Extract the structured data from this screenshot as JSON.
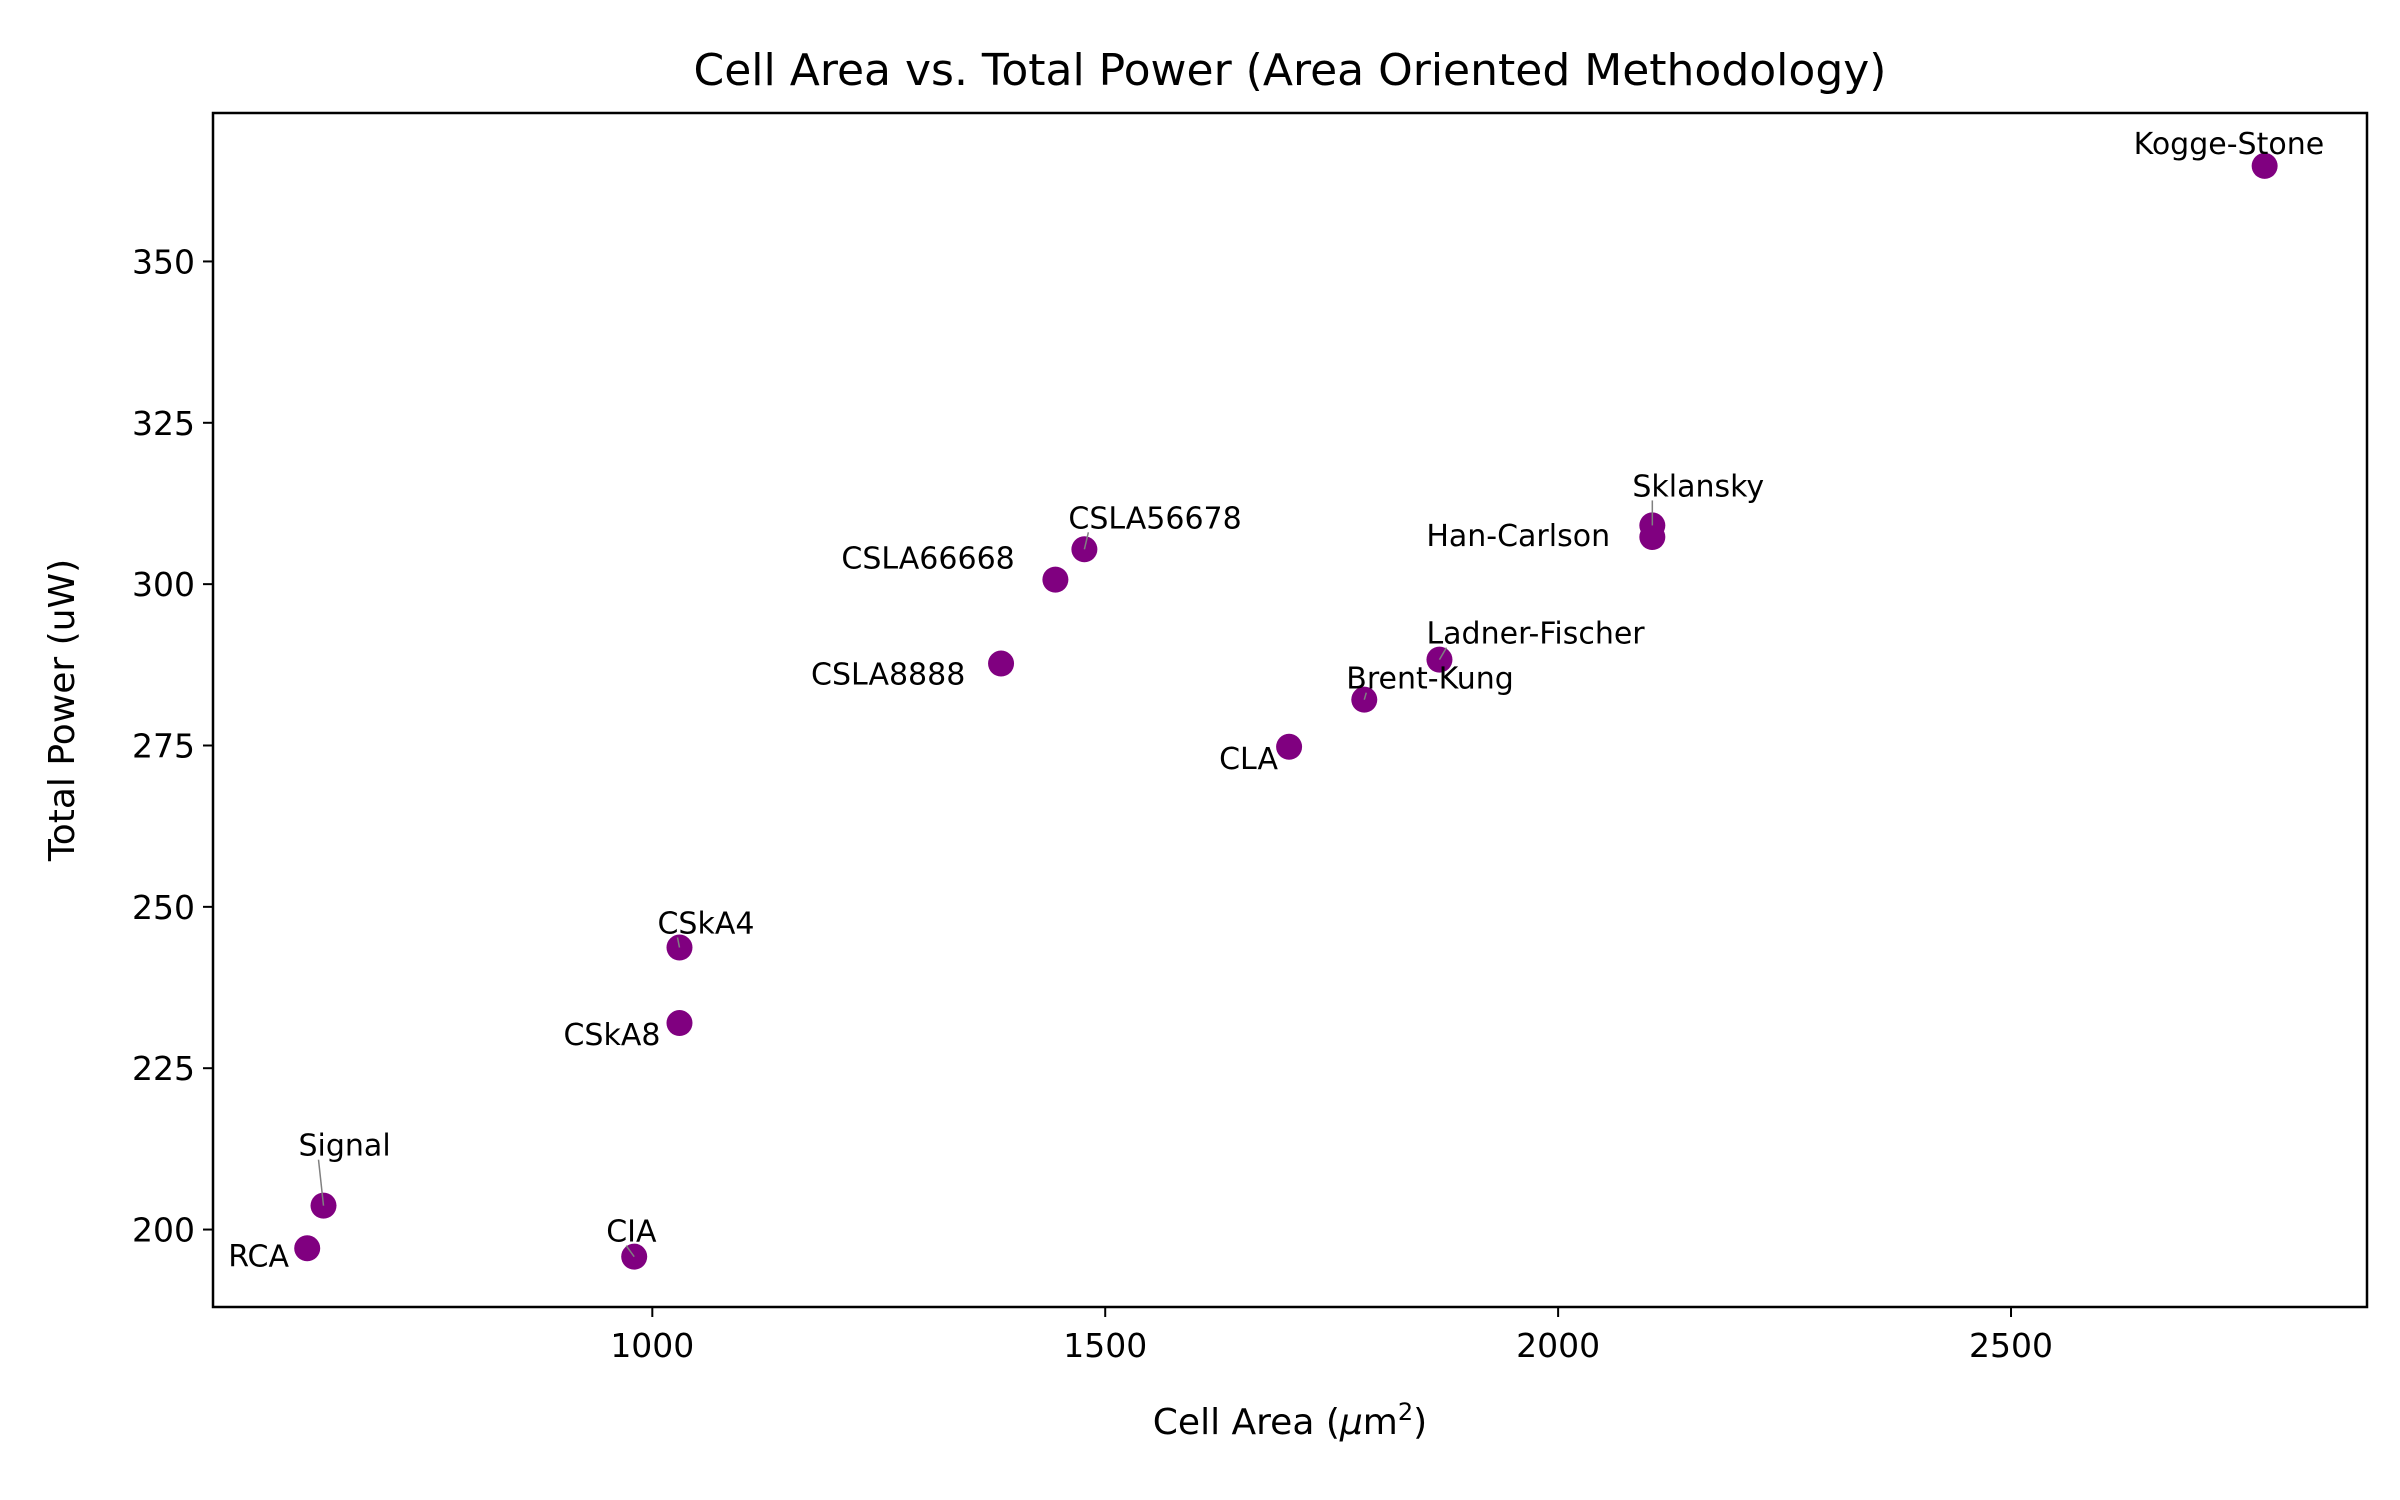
{
  "chart_data": {
    "type": "scatter",
    "title": "Cell Area vs. Total Power (Area Oriented Methodology)",
    "xlabel_main": "Cell Area (",
    "xlabel_mu": "μ",
    "xlabel_unit": "m",
    "xlabel_sup": "2",
    "xlabel_close": ")",
    "ylabel": "Total Power (uW)",
    "xlim": [
      515,
      2893
    ],
    "ylim": [
      188,
      373
    ],
    "xticks": [
      1000,
      1500,
      2000,
      2500
    ],
    "yticks": [
      200,
      225,
      250,
      275,
      300,
      325,
      350
    ],
    "grid": false,
    "marker_color": "#800080",
    "points": [
      {
        "name": "RCA",
        "x": 619,
        "y": 197.1
      },
      {
        "name": "Signal",
        "x": 637,
        "y": 203.7
      },
      {
        "name": "CIA",
        "x": 980,
        "y": 195.8
      },
      {
        "name": "CSkA8",
        "x": 1030,
        "y": 232.0
      },
      {
        "name": "CSkA4",
        "x": 1030,
        "y": 243.7
      },
      {
        "name": "CSLA8888",
        "x": 1385,
        "y": 287.7
      },
      {
        "name": "CSLA66668",
        "x": 1445,
        "y": 300.7
      },
      {
        "name": "CSLA56678",
        "x": 1477,
        "y": 305.4
      },
      {
        "name": "CLA",
        "x": 1703,
        "y": 274.8
      },
      {
        "name": "Brent-Kung",
        "x": 1786,
        "y": 282.1
      },
      {
        "name": "Ladner-Fischer",
        "x": 1869,
        "y": 288.3
      },
      {
        "name": "Han-Carlson",
        "x": 2104,
        "y": 307.3
      },
      {
        "name": "Sklansky",
        "x": 2104,
        "y": 309.1
      },
      {
        "name": "Kogge-Stone",
        "x": 2780,
        "y": 364.8
      }
    ]
  }
}
